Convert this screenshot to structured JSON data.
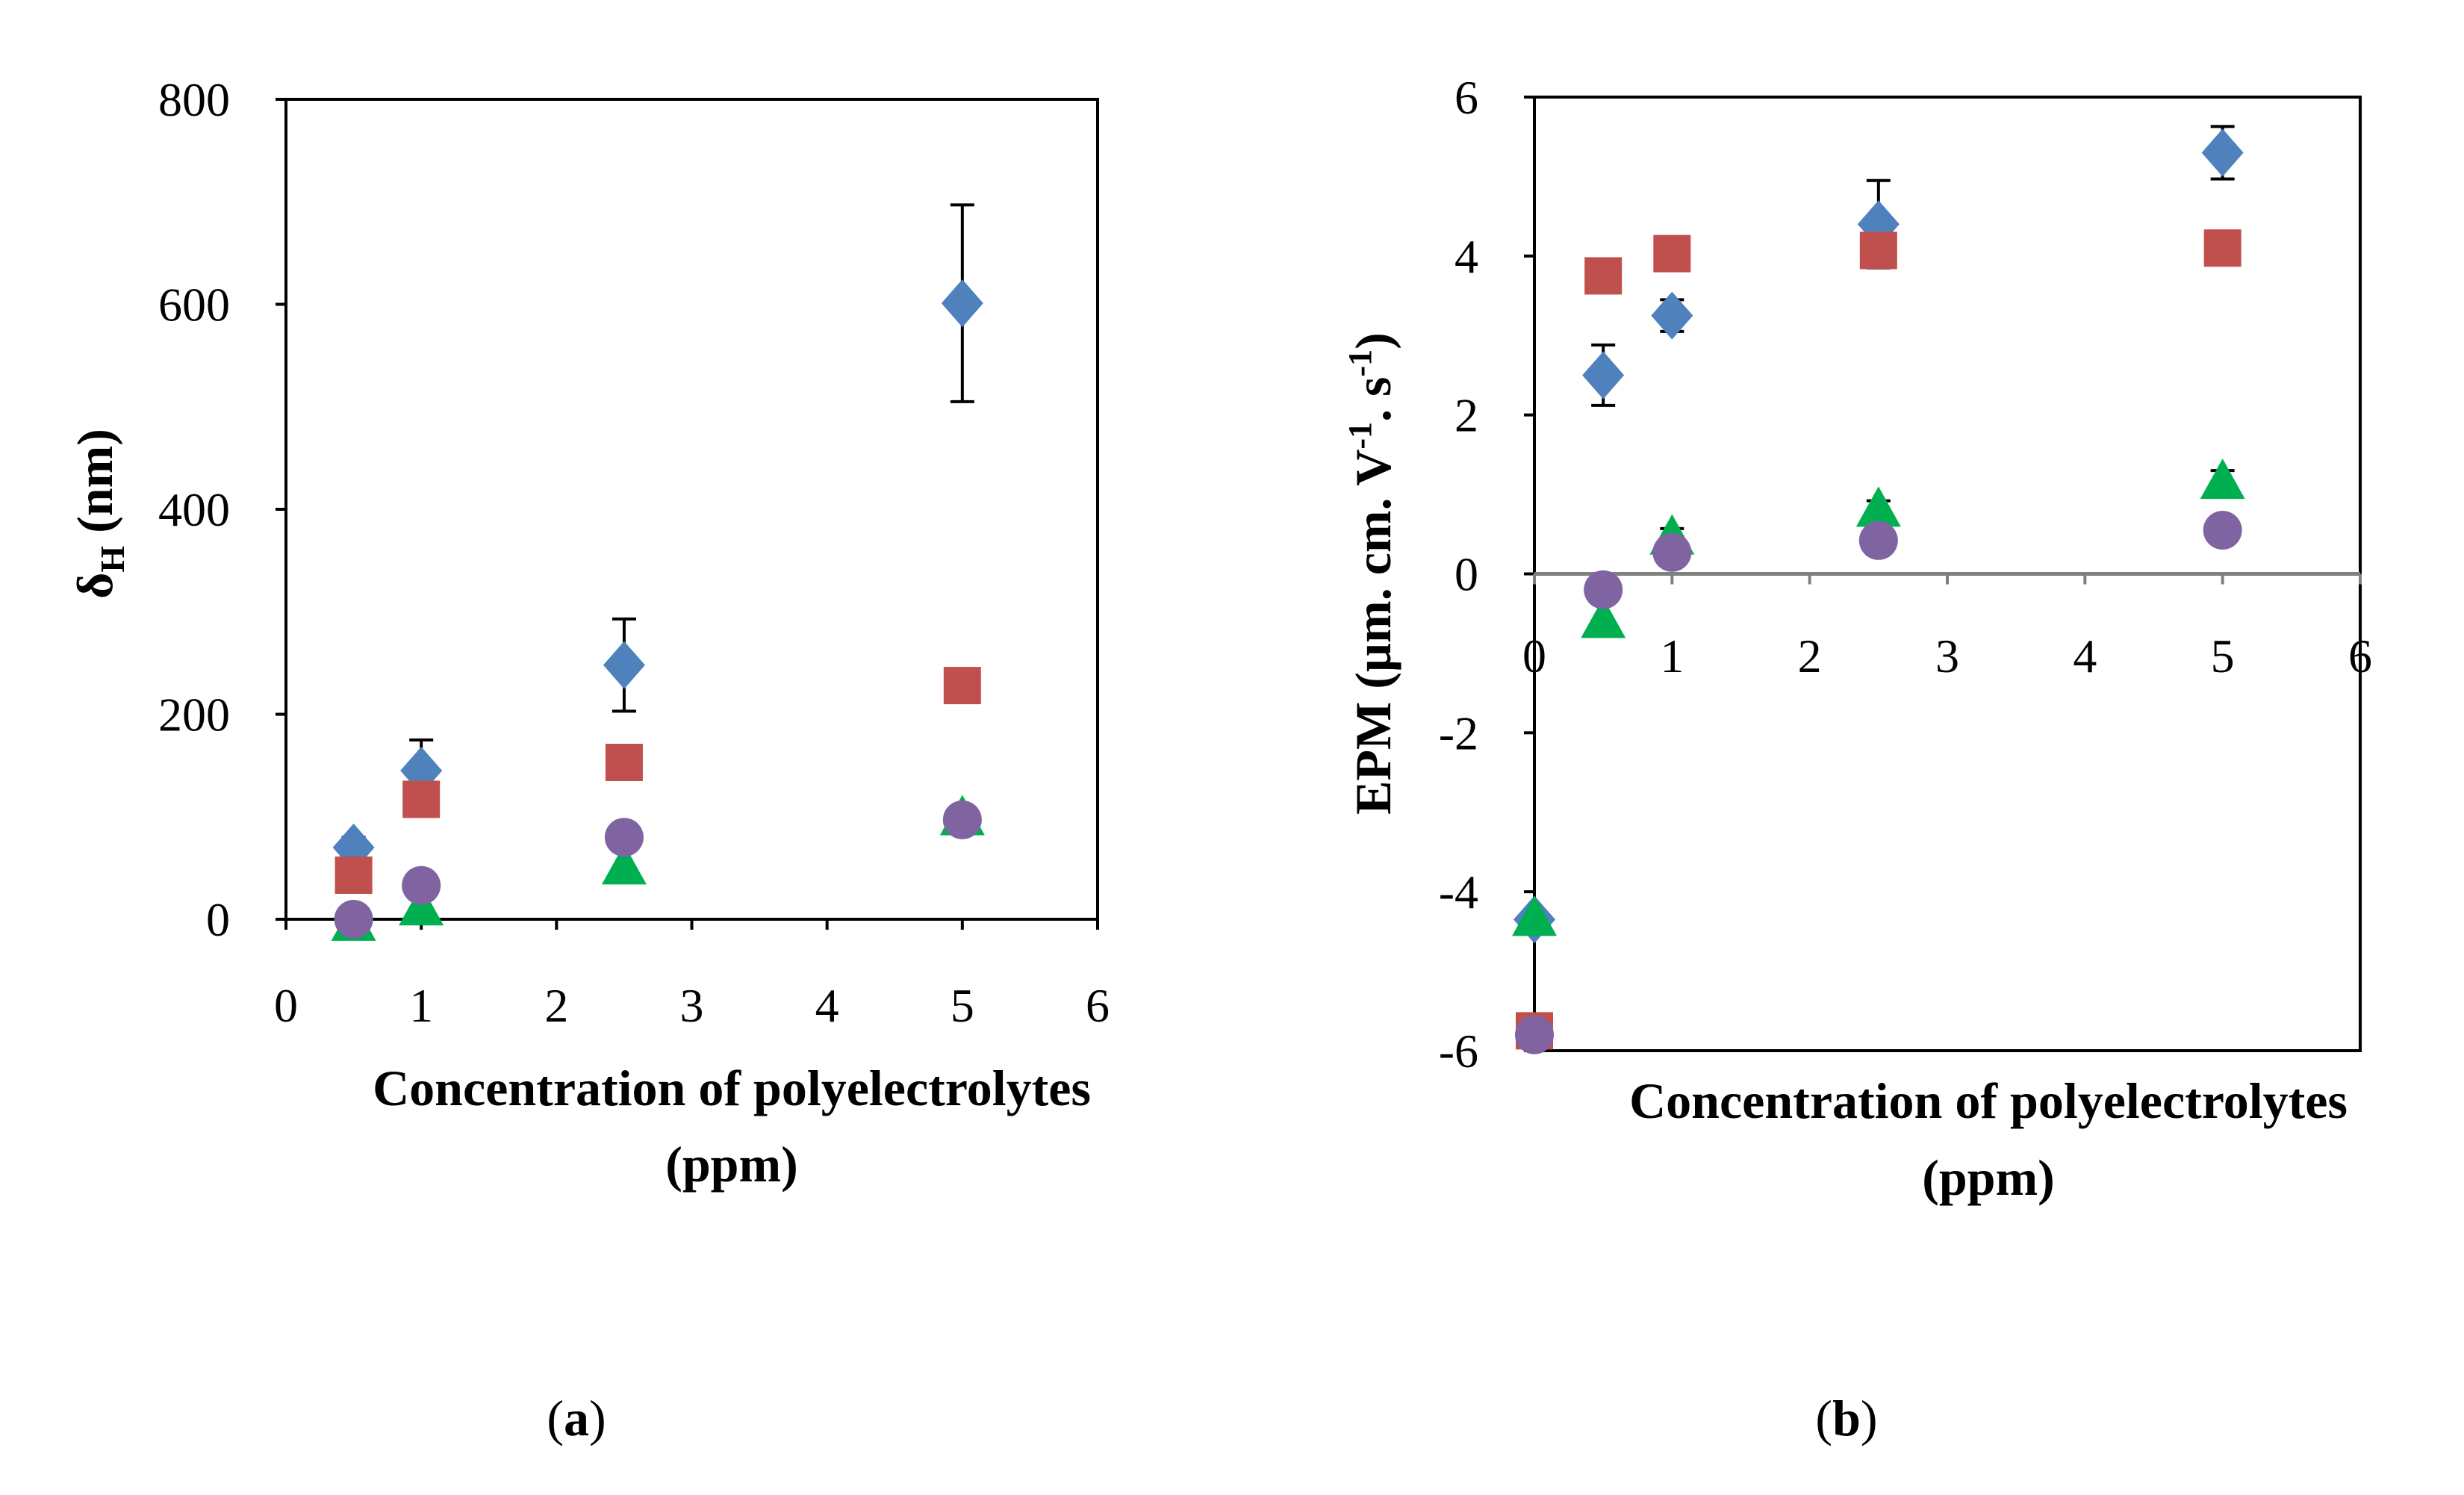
{
  "colors": {
    "series1": "#4F81BD",
    "series2": "#C0504D",
    "series3": "#00B050",
    "series4": "#8064A2",
    "axis": "#000000",
    "zero_line": "#808080"
  },
  "panels": [
    {
      "label_open": "(",
      "label_letter": "a",
      "label_close": ")"
    },
    {
      "label_open": "(",
      "label_letter": "b",
      "label_close": ")"
    }
  ],
  "chart_data": [
    {
      "type": "scatter",
      "panel": "a",
      "xlabel_line1": "Concentration of polyelectrolytes",
      "xlabel_line2": "(ppm)",
      "ylabel_main": "δ",
      "ylabel_sub": "H",
      "ylabel_unit": " (nm)",
      "xlim": [
        0,
        6
      ],
      "ylim": [
        0,
        800
      ],
      "xticks": [
        0,
        1,
        2,
        3,
        4,
        5,
        6
      ],
      "yticks": [
        0,
        200,
        400,
        600,
        800
      ],
      "legend": "none",
      "series": [
        {
          "name": "series 1",
          "marker": "diamond",
          "x": [
            0.5,
            1,
            2.5,
            5
          ],
          "y": [
            70,
            145,
            248,
            601
          ],
          "err": [
            10,
            30,
            45,
            96
          ]
        },
        {
          "name": "series 2",
          "marker": "square",
          "x": [
            0.5,
            1,
            2.5,
            5
          ],
          "y": [
            43,
            117,
            153,
            228
          ],
          "err": [
            0,
            0,
            0,
            0
          ]
        },
        {
          "name": "series 3",
          "marker": "triangle",
          "x": [
            0.5,
            1,
            2.5,
            5
          ],
          "y": [
            -5,
            10,
            50,
            98
          ],
          "err": [
            0,
            0,
            0,
            0
          ]
        },
        {
          "name": "series 4",
          "marker": "circle",
          "x": [
            0.5,
            1,
            2.5,
            5
          ],
          "y": [
            0,
            33,
            80,
            97
          ],
          "err": [
            0,
            0,
            0,
            0
          ]
        }
      ]
    },
    {
      "type": "scatter",
      "panel": "b",
      "xlabel_line1": "Concentration of polyelectrolytes",
      "xlabel_line2": "(ppm)",
      "ylabel_pre": "EPM (µm. cm. V",
      "ylabel_sup1": "-1",
      "ylabel_mid": ". s",
      "ylabel_sup2": "-1",
      "ylabel_post": ")",
      "xlim": [
        0,
        6
      ],
      "ylim": [
        -6,
        6
      ],
      "xticks": [
        0,
        1,
        2,
        3,
        4,
        5,
        6
      ],
      "yticks": [
        -6,
        -4,
        -2,
        0,
        2,
        4,
        6
      ],
      "legend": "none",
      "series": [
        {
          "name": "series 1",
          "marker": "diamond",
          "x": [
            0,
            0.5,
            1,
            2.5,
            5
          ],
          "y": [
            -4.35,
            2.5,
            3.25,
            4.4,
            5.3
          ],
          "err": [
            0,
            0.38,
            0.2,
            0.55,
            0.33
          ]
        },
        {
          "name": "series 2",
          "marker": "square",
          "x": [
            0,
            0.5,
            1,
            2.5,
            5
          ],
          "y": [
            -5.75,
            3.75,
            4.03,
            4.07,
            4.1
          ],
          "err": [
            0,
            0,
            0,
            0,
            0
          ]
        },
        {
          "name": "series 3",
          "marker": "triangle",
          "x": [
            0,
            0.5,
            1,
            2.5,
            5
          ],
          "y": [
            -4.35,
            -0.6,
            0.45,
            0.8,
            1.15
          ],
          "err": [
            0,
            0,
            0.12,
            0.12,
            0.15
          ]
        },
        {
          "name": "series 4",
          "marker": "circle",
          "x": [
            0,
            0.5,
            1,
            2.5,
            5
          ],
          "y": [
            -5.8,
            -0.2,
            0.27,
            0.42,
            0.55
          ],
          "err": [
            0,
            0,
            0,
            0,
            0
          ]
        }
      ]
    }
  ]
}
